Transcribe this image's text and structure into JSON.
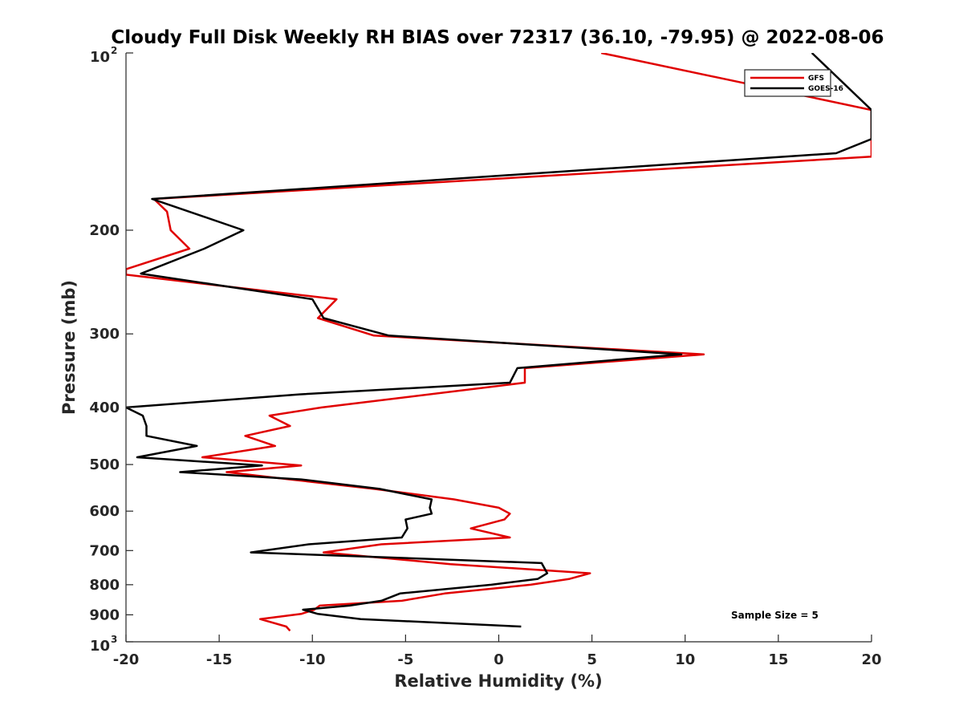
{
  "chart_data": {
    "type": "line",
    "title": "Cloudy Full Disk Weekly RH BIAS over 72317 (36.10, -79.95) @ 2022-08-06",
    "xlabel": "Relative Humidity (%)",
    "ylabel": "Pressure (mb)",
    "xlim": [
      -20,
      20
    ],
    "ylim": [
      100,
      1000
    ],
    "yscale": "log",
    "yreversed": true,
    "grid": false,
    "legend_position": "top-right",
    "x_ticks": [
      -20,
      -15,
      -10,
      -5,
      0,
      5,
      10,
      15,
      20
    ],
    "x_tick_labels": [
      "-20",
      "-15",
      "-10",
      "-5",
      "0",
      "5",
      "10",
      "15",
      "20"
    ],
    "y_ticks": [
      {
        "value": 100,
        "base": "10",
        "exp": "2"
      },
      {
        "value": 200,
        "label": "200"
      },
      {
        "value": 300,
        "label": "300"
      },
      {
        "value": 400,
        "label": "400"
      },
      {
        "value": 500,
        "label": "500"
      },
      {
        "value": 600,
        "label": "600"
      },
      {
        "value": 700,
        "label": "700"
      },
      {
        "value": 800,
        "label": "800"
      },
      {
        "value": 900,
        "label": "900"
      },
      {
        "value": 1000,
        "base": "10",
        "exp": "3"
      }
    ],
    "annotation": "Sample Size = 5",
    "series": [
      {
        "name": "GFS",
        "color": "#e00000",
        "points": [
          [
            5.5,
            100
          ],
          [
            20,
            125
          ],
          [
            20,
            150
          ],
          [
            -18.5,
            177
          ],
          [
            -17.8,
            186
          ],
          [
            -17.6,
            200
          ],
          [
            -16.6,
            215
          ],
          [
            -20,
            233
          ],
          [
            -20,
            238
          ],
          [
            -8.7,
            262
          ],
          [
            -9.7,
            282
          ],
          [
            -6.7,
            302
          ],
          [
            11,
            325
          ],
          [
            1.4,
            343
          ],
          [
            1.4,
            363
          ],
          [
            -9.5,
            400
          ],
          [
            -12.3,
            413
          ],
          [
            -11.2,
            430
          ],
          [
            -13.6,
            447
          ],
          [
            -12,
            465
          ],
          [
            -15.9,
            486
          ],
          [
            -10.6,
            502
          ],
          [
            -14.6,
            515
          ],
          [
            -11.2,
            530
          ],
          [
            -6.7,
            550
          ],
          [
            -2.4,
            573
          ],
          [
            0,
            592
          ],
          [
            0.6,
            606
          ],
          [
            0.3,
            620
          ],
          [
            -1.5,
            642
          ],
          [
            0.6,
            665
          ],
          [
            -6.3,
            683
          ],
          [
            -9.4,
            705
          ],
          [
            -2.6,
            738
          ],
          [
            4.9,
            765
          ],
          [
            3.8,
            782
          ],
          [
            1.7,
            800
          ],
          [
            -2.9,
            828
          ],
          [
            -5.2,
            852
          ],
          [
            -9.6,
            868
          ],
          [
            -9.9,
            882
          ],
          [
            -10.6,
            897
          ],
          [
            -12.8,
            915
          ],
          [
            -11.4,
            942
          ],
          [
            -11.2,
            958
          ]
        ]
      },
      {
        "name": "GOES-16",
        "color": "#000000",
        "points": [
          [
            16.8,
            100
          ],
          [
            20,
            125
          ],
          [
            20,
            140
          ],
          [
            18.1,
            148
          ],
          [
            -18.6,
            177
          ],
          [
            -13.7,
            200
          ],
          [
            -15.8,
            215
          ],
          [
            -19.2,
            237
          ],
          [
            -10,
            262
          ],
          [
            -9.4,
            282
          ],
          [
            -5.9,
            302
          ],
          [
            9.8,
            325
          ],
          [
            1,
            343
          ],
          [
            0.6,
            363
          ],
          [
            -10.7,
            380
          ],
          [
            -20,
            400
          ],
          [
            -19.1,
            413
          ],
          [
            -18.9,
            430
          ],
          [
            -18.9,
            447
          ],
          [
            -16.2,
            465
          ],
          [
            -19.4,
            486
          ],
          [
            -12.7,
            502
          ],
          [
            -17.1,
            515
          ],
          [
            -10.6,
            530
          ],
          [
            -6.4,
            550
          ],
          [
            -3.6,
            573
          ],
          [
            -3.7,
            592
          ],
          [
            -3.6,
            606
          ],
          [
            -5,
            620
          ],
          [
            -4.9,
            642
          ],
          [
            -5.2,
            665
          ],
          [
            -10.2,
            683
          ],
          [
            -13.3,
            705
          ],
          [
            2.3,
            735
          ],
          [
            2.6,
            765
          ],
          [
            2.1,
            782
          ],
          [
            -0.4,
            800
          ],
          [
            -5.3,
            828
          ],
          [
            -6.3,
            852
          ],
          [
            -8,
            868
          ],
          [
            -10.5,
            882
          ],
          [
            -9.7,
            897
          ],
          [
            -7.4,
            915
          ],
          [
            1.2,
            942
          ]
        ]
      }
    ]
  }
}
